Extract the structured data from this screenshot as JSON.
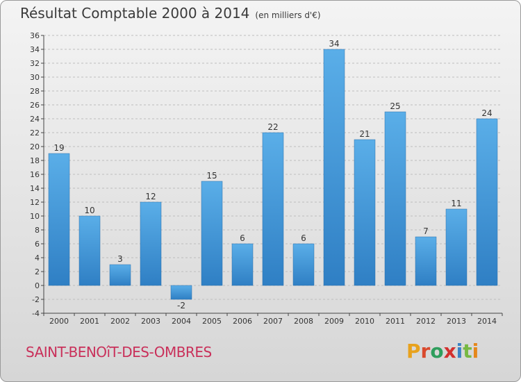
{
  "header": {
    "title": "Résultat Comptable 2000 à 2014",
    "unit": "(en milliers d'€)"
  },
  "footer": {
    "commune": "SAINT-BENOîT-DES-OMBRES",
    "logo": [
      "P",
      "r",
      "o",
      "x",
      "i",
      "t",
      "i"
    ]
  },
  "colors": {
    "bar_light": "#5aaee8",
    "bar_dark": "#2f7fc4",
    "axis": "#444444",
    "grid": "#bdbdbd",
    "text": "#333333"
  },
  "chart_data": {
    "type": "bar",
    "title": "Résultat Comptable 2000 à 2014",
    "subtitle": "(en milliers d'€)",
    "xlabel": "",
    "ylabel": "",
    "categories": [
      "2000",
      "2001",
      "2002",
      "2003",
      "2004",
      "2005",
      "2006",
      "2007",
      "2008",
      "2009",
      "2010",
      "2011",
      "2012",
      "2013",
      "2014"
    ],
    "values": [
      19,
      10,
      3,
      12,
      -2,
      15,
      6,
      22,
      6,
      34,
      21,
      25,
      7,
      11,
      24
    ],
    "ylim": [
      -4,
      36
    ],
    "yticks": [
      -4,
      -2,
      0,
      2,
      4,
      6,
      8,
      10,
      12,
      14,
      16,
      18,
      20,
      22,
      24,
      26,
      28,
      30,
      32,
      34,
      36
    ],
    "grid": true,
    "legend": "none"
  }
}
